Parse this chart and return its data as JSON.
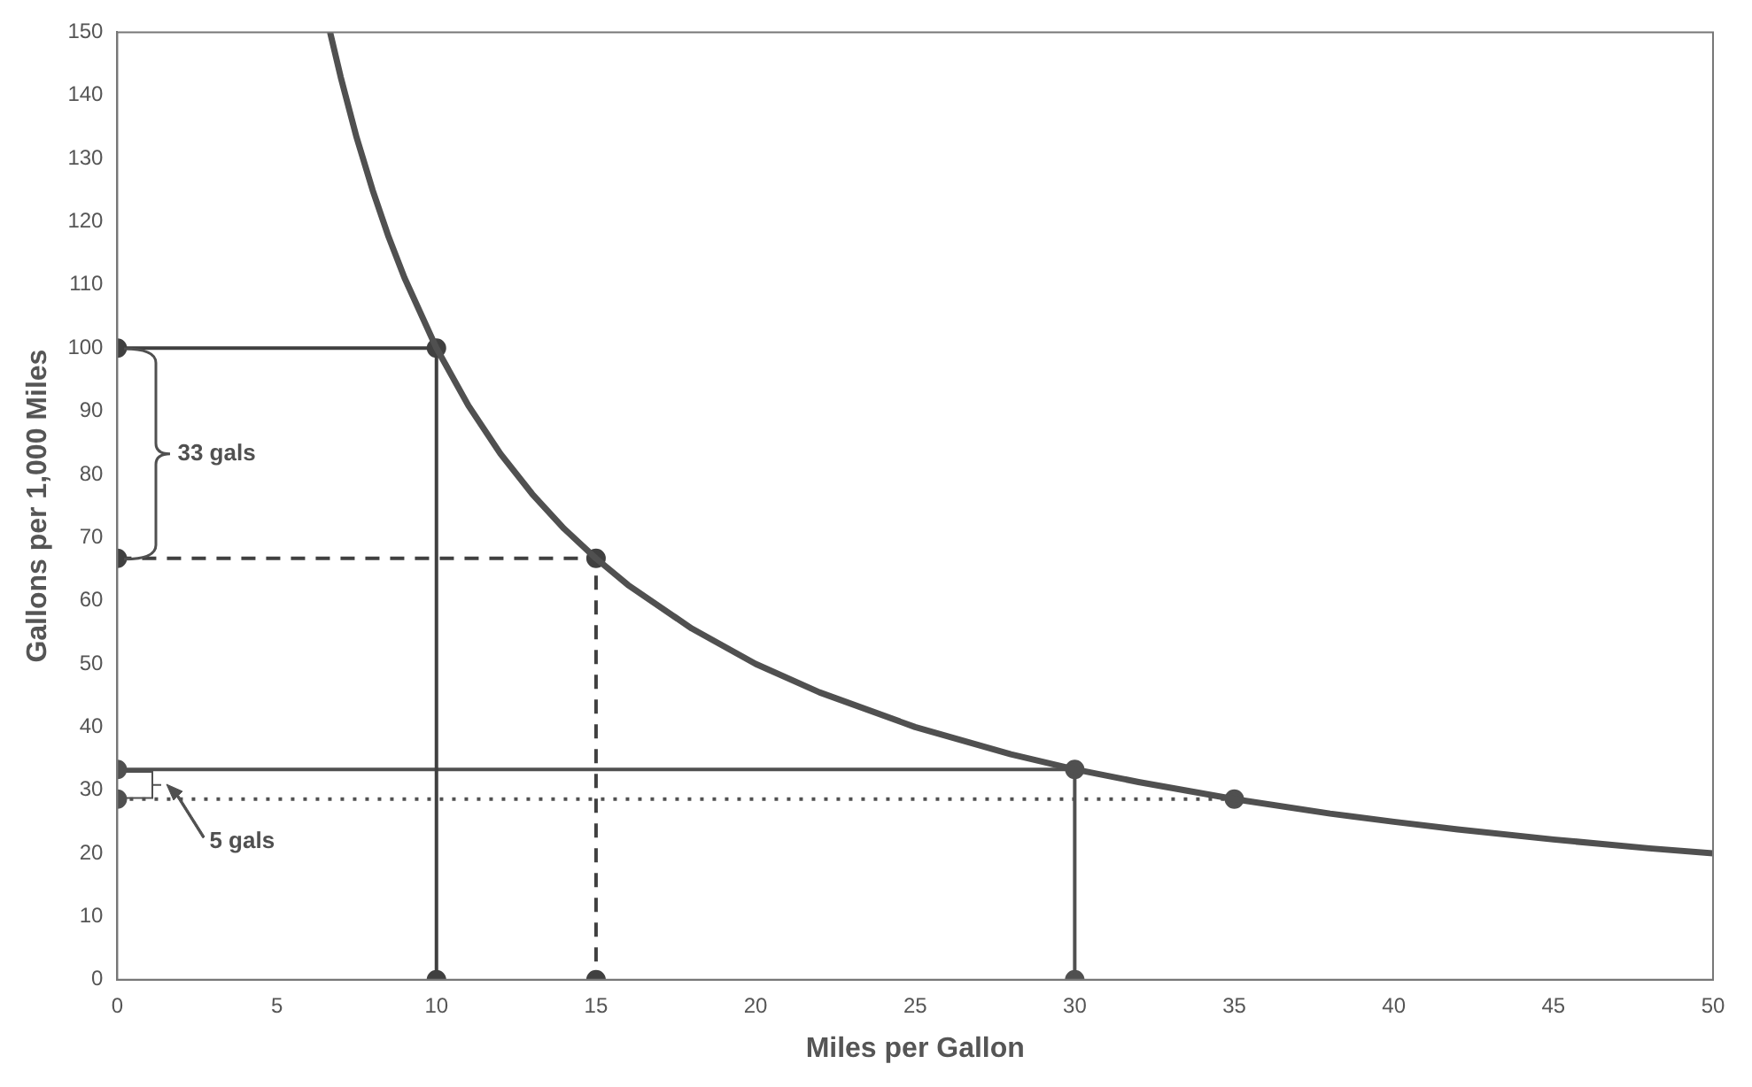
{
  "chart_data": {
    "type": "line",
    "xlabel": "Miles per Gallon",
    "ylabel": "Gallons per 1,000 Miles",
    "xlim": [
      0,
      50
    ],
    "xticks": [
      0,
      5,
      10,
      15,
      20,
      25,
      30,
      35,
      40,
      45,
      50
    ],
    "ylim": [
      0,
      150
    ],
    "yticks": [
      0,
      10,
      20,
      30,
      40,
      50,
      60,
      70,
      80,
      90,
      100,
      110,
      120,
      130,
      140,
      150
    ],
    "grid": false,
    "legend": false,
    "series": [
      {
        "color": "#505050",
        "marker": "none",
        "line_style": "solid",
        "x": [
          6.667,
          7,
          7.5,
          8,
          8.5,
          9,
          10,
          11,
          12,
          13,
          14,
          15,
          16,
          18,
          20,
          22,
          25,
          28,
          30,
          32,
          35,
          38,
          40,
          42,
          45,
          48,
          50
        ],
        "values": [
          150,
          142.9,
          133.3,
          125,
          117.6,
          111.1,
          100,
          90.9,
          83.3,
          76.9,
          71.4,
          66.7,
          62.5,
          55.6,
          50,
          45.5,
          40,
          35.7,
          33.3,
          31.3,
          28.6,
          26.3,
          25,
          23.8,
          22.2,
          20.8,
          20
        ]
      },
      {
        "color": "#404040",
        "marker": "circle",
        "line_style": "solid",
        "x": [
          0,
          10,
          10
        ],
        "values": [
          100,
          100,
          0
        ]
      },
      {
        "color": "#404040",
        "marker": "circle",
        "line_style": "dashed",
        "x": [
          0,
          15,
          15
        ],
        "values": [
          66.7,
          66.7,
          0
        ]
      },
      {
        "color": "#505050",
        "marker": "circle",
        "line_style": "solid",
        "x": [
          0,
          30,
          30
        ],
        "values": [
          33.3,
          33.3,
          0
        ]
      },
      {
        "color": "#505050",
        "marker": "circle",
        "line_style": "dotted",
        "x": [
          0,
          35
        ],
        "values": [
          28.6,
          28.6
        ]
      }
    ],
    "annotations": [
      "33 gals",
      "5 gals"
    ]
  }
}
